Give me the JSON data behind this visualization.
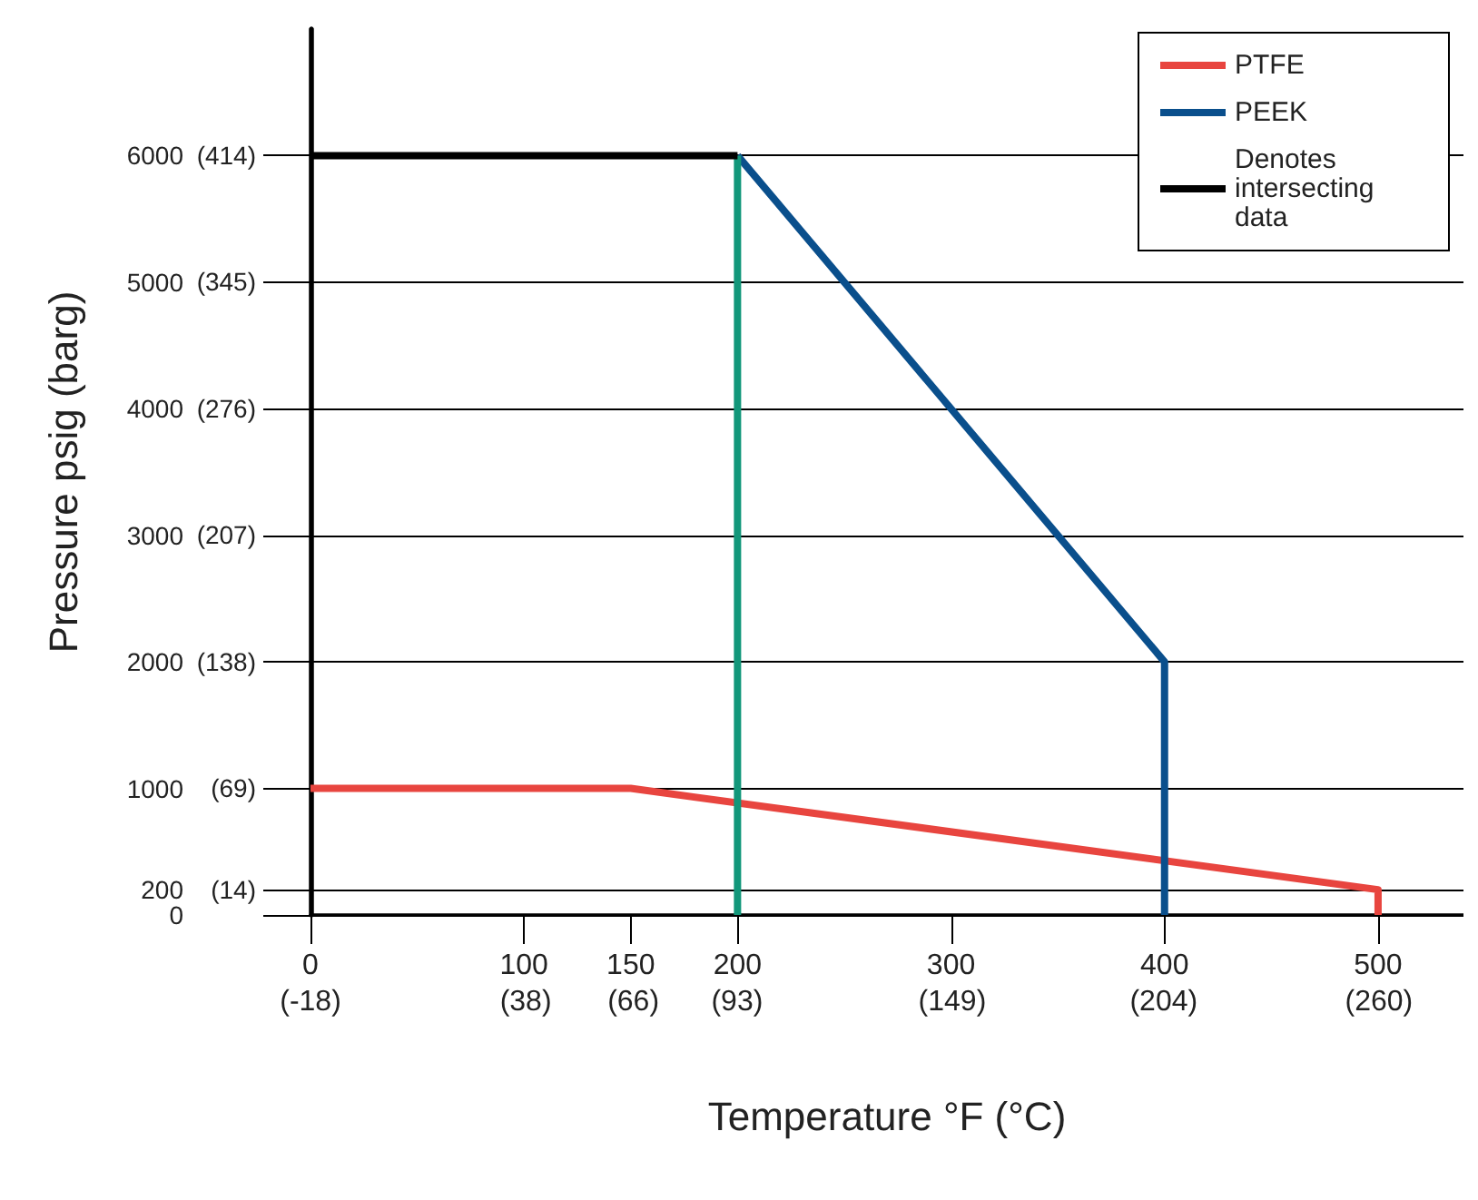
{
  "chart_data": {
    "type": "line",
    "xlabel": "Temperature °F (°C)",
    "ylabel": "Pressure psig (barg)",
    "xlim": [
      0,
      540
    ],
    "ylim": [
      0,
      7000
    ],
    "xticks": [
      0,
      100,
      150,
      200,
      300,
      400,
      500
    ],
    "x2lim": [
      -18,
      282
    ],
    "x2ticks": [
      {
        "value": -18,
        "label": "(-18)"
      },
      {
        "value": 38,
        "label": "(38)"
      },
      {
        "value": 66,
        "label": "(66)"
      },
      {
        "value": 93,
        "label": "(93)"
      },
      {
        "value": 149,
        "label": "(149)"
      },
      {
        "value": 204,
        "label": "(204)"
      },
      {
        "value": 260,
        "label": "(260)"
      }
    ],
    "yticks": [
      0,
      200,
      1000,
      2000,
      3000,
      4000,
      5000,
      6000
    ],
    "y2lim": [
      0,
      482.6
    ],
    "y2ticks": [
      {
        "value": 14,
        "label": "(14)"
      },
      {
        "value": 69,
        "label": "(69)"
      },
      {
        "value": 138,
        "label": "(138)"
      },
      {
        "value": 207,
        "label": "(207)"
      },
      {
        "value": 276,
        "label": "(276)"
      },
      {
        "value": 345,
        "label": "(345)"
      },
      {
        "value": 414,
        "label": "(414)"
      }
    ],
    "grid": "y",
    "legend": "top right",
    "marker": "none",
    "line_style": "solid",
    "series": [
      {
        "name": "PTFE",
        "color": "#e8453f",
        "x": [
          0,
          150,
          500,
          500
        ],
        "values": [
          1000,
          1000,
          200,
          0
        ]
      },
      {
        "name": "PEEK",
        "color": "#0a4f8c",
        "x": [
          200,
          400,
          400
        ],
        "values": [
          6000,
          2000,
          0
        ]
      },
      {
        "color": "#12977a",
        "x": [
          200,
          200
        ],
        "values": [
          0,
          6000
        ]
      },
      {
        "name": "Denotes intersecting data",
        "color": "#000000",
        "x": [
          0,
          200
        ],
        "values": [
          6000,
          6000
        ]
      }
    ]
  }
}
